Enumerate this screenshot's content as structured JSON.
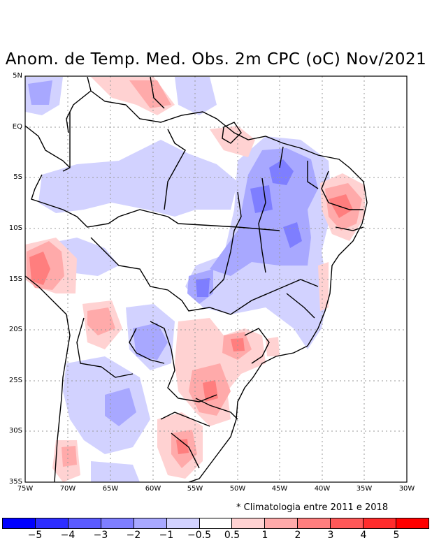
{
  "title": "Anom. de Temp. Med. Obs. 2m CPC (oC) Nov/2021",
  "note": "* Climatologia entre 2011 e 2018",
  "lat_labels": [
    "5N",
    "EQ",
    "5S",
    "10S",
    "15S",
    "20S",
    "25S",
    "30S",
    "35S"
  ],
  "lon_labels": [
    "75W",
    "70W",
    "65W",
    "60W",
    "55W",
    "50W",
    "45W",
    "40W",
    "35W",
    "30W"
  ],
  "legend": {
    "colors": [
      "#0000ff",
      "#2d2dff",
      "#5a5aff",
      "#7e7eff",
      "#a8a8ff",
      "#d2d2ff",
      "#ffffff",
      "#ffd2d2",
      "#ffaaaa",
      "#ff7e7e",
      "#ff5858",
      "#ff2c2c",
      "#ff0000"
    ],
    "ticks": [
      "−5",
      "−4",
      "−3",
      "−2",
      "−1",
      "−0.5",
      "0.5",
      "1",
      "2",
      "3",
      "4",
      "5"
    ]
  }
}
